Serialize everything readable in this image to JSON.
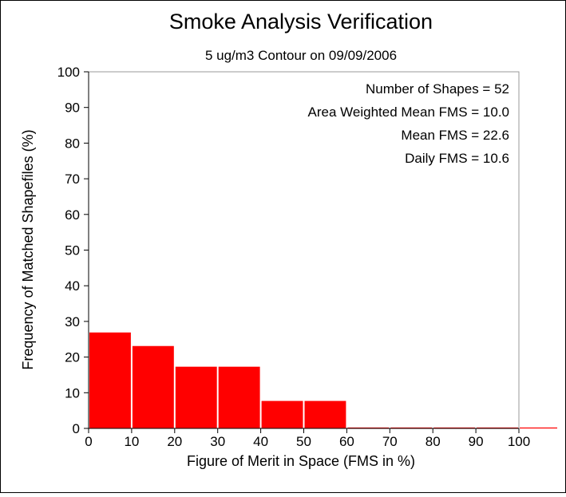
{
  "chart_data": {
    "type": "bar",
    "title": "Smoke Analysis Verification",
    "subtitle": "5 ug/m3 Contour on 09/09/2006",
    "xlabel": "Figure of Merit in Space (FMS in %)",
    "ylabel": "Frequency of Matched Shapefiles (%)",
    "xlim": [
      0,
      100
    ],
    "ylim": [
      0,
      100
    ],
    "x_ticks": [
      "0",
      "10",
      "20",
      "30",
      "40",
      "50",
      "60",
      "70",
      "80",
      "90",
      "100"
    ],
    "y_ticks": [
      "0",
      "10",
      "20",
      "30",
      "40",
      "50",
      "60",
      "70",
      "80",
      "90",
      "100"
    ],
    "bins": [
      {
        "start": 0,
        "end": 10,
        "value": 26.9
      },
      {
        "start": 10,
        "end": 20,
        "value": 23.1
      },
      {
        "start": 20,
        "end": 30,
        "value": 17.3
      },
      {
        "start": 30,
        "end": 40,
        "value": 17.3
      },
      {
        "start": 40,
        "end": 50,
        "value": 7.7
      },
      {
        "start": 50,
        "end": 60,
        "value": 7.7
      },
      {
        "start": 60,
        "end": 70,
        "value": 0
      },
      {
        "start": 70,
        "end": 80,
        "value": 0
      },
      {
        "start": 80,
        "end": 90,
        "value": 0
      },
      {
        "start": 90,
        "end": 100,
        "value": 0
      },
      {
        "start": 100,
        "end": 110,
        "value": 0
      }
    ],
    "bar_color": "#ff0000",
    "annotations": [
      "Number of Shapes = 52",
      "Area Weighted Mean FMS = 10.0",
      "Mean FMS = 22.6",
      "Daily FMS = 10.6"
    ],
    "grid": false,
    "legend": "none"
  }
}
